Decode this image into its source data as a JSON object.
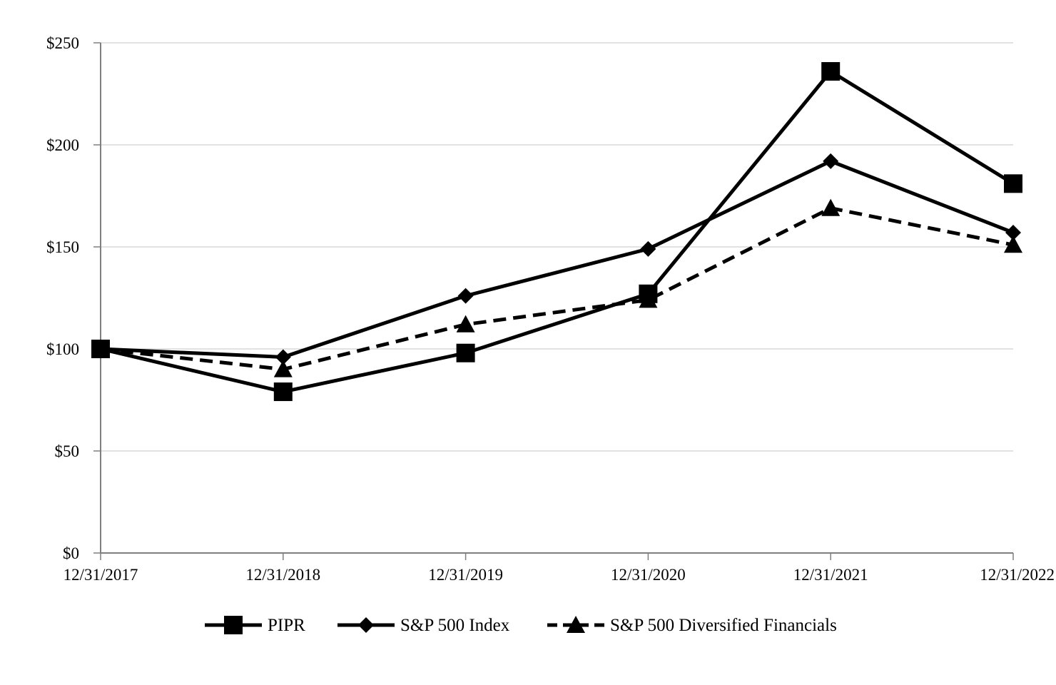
{
  "chart_data": {
    "type": "line",
    "categories": [
      "12/31/2017",
      "12/31/2018",
      "12/31/2019",
      "12/31/2020",
      "12/31/2021",
      "12/31/2022"
    ],
    "y_tick_labels": [
      "$0",
      "$50",
      "$100",
      "$150",
      "$200",
      "$250"
    ],
    "y_ticks": [
      0,
      50,
      100,
      150,
      200,
      250
    ],
    "ylim": [
      0,
      250
    ],
    "grid": true,
    "legend_position": "bottom",
    "series": [
      {
        "name": "PIPR",
        "values": [
          100,
          79,
          98,
          127,
          236,
          181
        ],
        "marker": "square",
        "dash": "solid",
        "color": "#000000"
      },
      {
        "name": "S&P 500 Index",
        "values": [
          100,
          96,
          126,
          149,
          192,
          157
        ],
        "marker": "diamond",
        "dash": "solid",
        "color": "#000000"
      },
      {
        "name": "S&P 500 Diversified Financials",
        "values": [
          100,
          90,
          112,
          124,
          169,
          151
        ],
        "marker": "triangle",
        "dash": "dashed",
        "color": "#000000"
      }
    ]
  }
}
